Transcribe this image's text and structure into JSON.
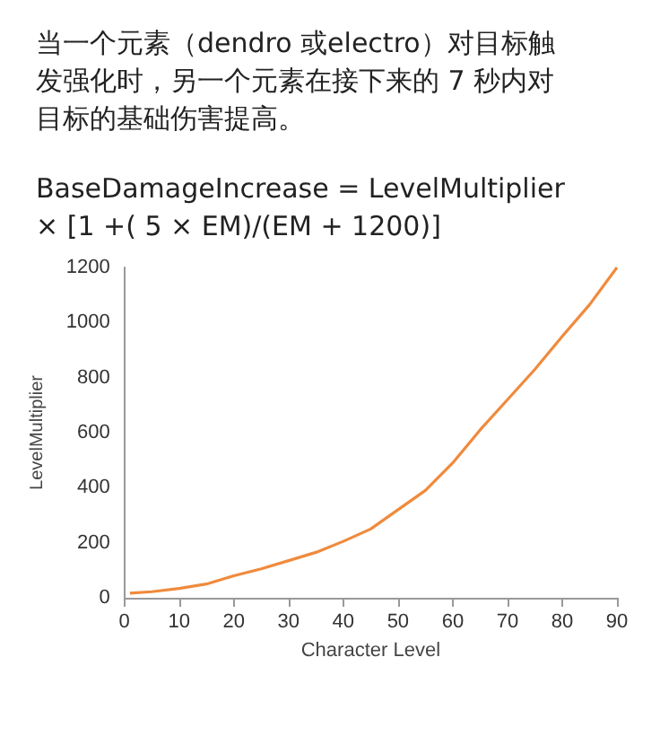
{
  "chart_data": {
    "type": "line",
    "title": "当一个元素（dendro 或electro）对目标触发强化时，另一个元素在接下来的 7 秒内对目标的基础伤害提高。",
    "subtitle": "BaseDamageIncrease = LevelMultiplier × [1 +( 5 × EM)/(EM + 1200)]",
    "xlabel": "Character Level",
    "ylabel": "LevelMultiplier",
    "x": [
      1,
      5,
      10,
      15,
      20,
      25,
      30,
      35,
      40,
      45,
      50,
      55,
      60,
      65,
      70,
      75,
      80,
      85,
      90
    ],
    "series": [
      {
        "color": "#f08a3c",
        "values": [
          17,
          22,
          34,
          50,
          80,
          105,
          135,
          165,
          205,
          250,
          320,
          390,
          490,
          610,
          720,
          830,
          950,
          1065,
          1200
        ]
      }
    ],
    "xlim": [
      0,
      90
    ],
    "xticks": [
      0,
      10,
      20,
      30,
      40,
      50,
      60,
      70,
      80,
      90
    ],
    "ylim": [
      0,
      1200
    ],
    "yticks": [
      0,
      200,
      400,
      600,
      800,
      1000,
      1200
    ],
    "grid": false,
    "marker": "none",
    "line_style": "solid"
  }
}
